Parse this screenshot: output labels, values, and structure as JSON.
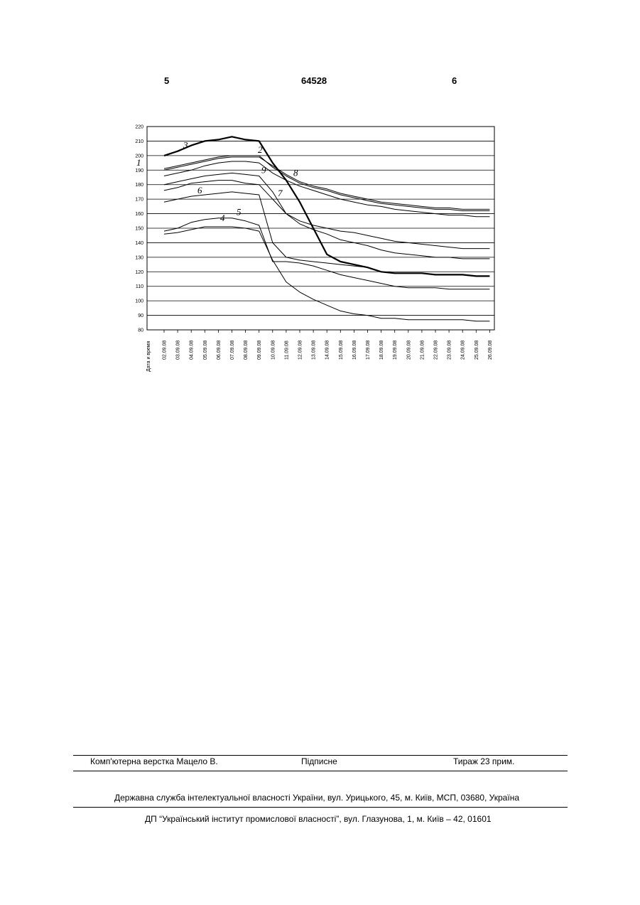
{
  "header": {
    "page_left": "5",
    "patent_number": "64528",
    "page_right": "6"
  },
  "chart_data": {
    "type": "line",
    "title": "",
    "xlabel": "Дата и время",
    "ylabel": "",
    "ylim": [
      80,
      220
    ],
    "yticks": [
      80,
      90,
      100,
      110,
      120,
      130,
      140,
      150,
      160,
      170,
      180,
      190,
      200,
      210,
      220
    ],
    "x": [
      "02.09.08",
      "03.09.08",
      "04.09.08",
      "05.09.08",
      "06.09.08",
      "07.09.08",
      "08.09.08",
      "09.09.08",
      "10.09.08",
      "11.09.08",
      "12.09.08",
      "13.09.08",
      "14.09.08",
      "15.09.08",
      "16.09.08",
      "17.09.08",
      "18.09.08",
      "19.09.08",
      "20.09.08",
      "21.09.08",
      "22.09.08",
      "23.09.08",
      "24.09.08",
      "25.09.08",
      "26.09.08"
    ],
    "grid": true,
    "series": [
      {
        "name": "1",
        "values": [
          191,
          193,
          195,
          197,
          199,
          200,
          200,
          200,
          192,
          186,
          181,
          178,
          176,
          173,
          171,
          169,
          167,
          166,
          165,
          164,
          163,
          163,
          162,
          162,
          162
        ]
      },
      {
        "name": "2",
        "values": [
          190,
          192,
          194,
          196,
          198,
          199,
          199,
          199,
          193,
          187,
          182,
          179,
          177,
          174,
          172,
          170,
          168,
          167,
          166,
          165,
          164,
          164,
          163,
          163,
          163
        ]
      },
      {
        "name": "3",
        "values": [
          200,
          203,
          207,
          210,
          211,
          213,
          211,
          210,
          195,
          183,
          168,
          150,
          132,
          127,
          125,
          123,
          120,
          119,
          119,
          119,
          118,
          118,
          118,
          117,
          117
        ]
      },
      {
        "name": "4",
        "values": [
          146,
          147,
          149,
          151,
          151,
          151,
          150,
          148,
          128,
          113,
          106,
          101,
          97,
          93,
          91,
          90,
          88,
          88,
          87,
          87,
          87,
          87,
          87,
          86,
          86
        ]
      },
      {
        "name": "5",
        "values": [
          148,
          150,
          154,
          156,
          157,
          157,
          155,
          152,
          127,
          127,
          126,
          124,
          121,
          118,
          116,
          114,
          112,
          110,
          109,
          109,
          109,
          108,
          108,
          108,
          108
        ]
      },
      {
        "name": "6",
        "values": [
          168,
          170,
          172,
          173,
          174,
          175,
          174,
          173,
          140,
          130,
          128,
          127,
          126,
          125,
          124,
          123,
          120,
          119,
          119,
          119,
          118,
          118,
          118,
          117,
          117
        ]
      },
      {
        "name": "7",
        "values": [
          176,
          178,
          181,
          182,
          183,
          183,
          181,
          180,
          170,
          160,
          155,
          152,
          150,
          148,
          147,
          145,
          143,
          141,
          140,
          139,
          138,
          137,
          136,
          136,
          136
        ]
      },
      {
        "name": "8",
        "values": [
          186,
          188,
          190,
          193,
          195,
          196,
          196,
          195,
          188,
          183,
          179,
          176,
          173,
          170,
          168,
          166,
          165,
          163,
          162,
          161,
          160,
          159,
          159,
          158,
          158
        ]
      },
      {
        "name": "9",
        "values": [
          180,
          182,
          184,
          186,
          187,
          188,
          187,
          186,
          175,
          160,
          153,
          149,
          146,
          142,
          140,
          138,
          135,
          133,
          132,
          131,
          130,
          130,
          129,
          129,
          129
        ]
      }
    ]
  },
  "footer": {
    "typesetting": "Комп'ютерна верстка Мацело В.",
    "signed": "Підписне",
    "circulation": "Тираж 23 прим.",
    "agency": "Державна служба інтелектуальної власності України, вул. Урицького, 45, м. Київ, МСП, 03680, Україна",
    "institute": "ДП “Український інститут промислової власності”, вул. Глазунова, 1, м. Київ – 42, 01601"
  }
}
